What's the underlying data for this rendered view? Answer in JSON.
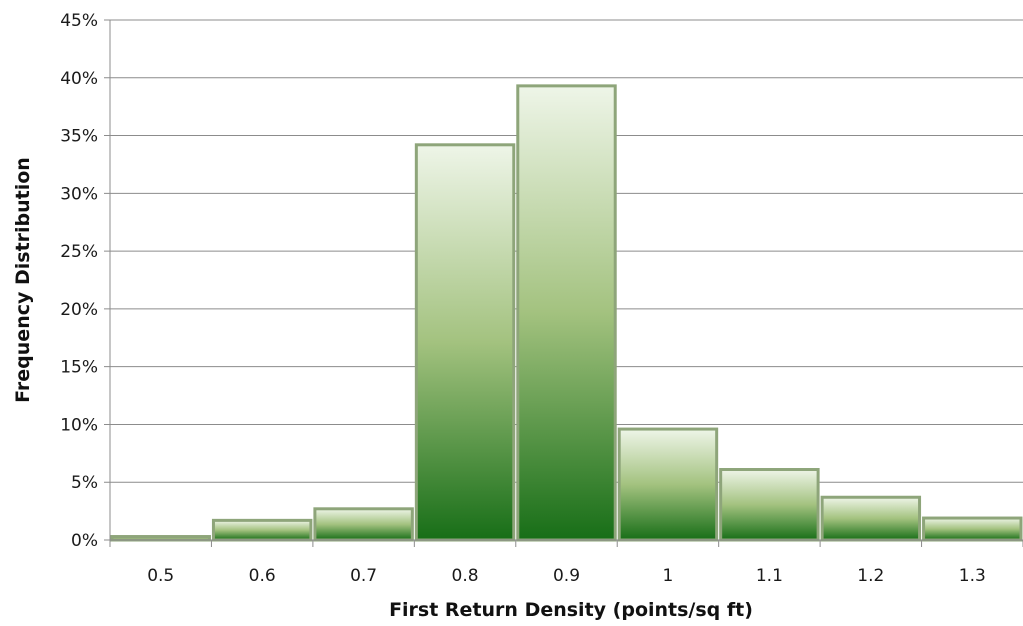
{
  "chart_data": {
    "type": "bar",
    "title": "",
    "xlabel": "First Return Density (points/sq ft)",
    "ylabel": "Frequency Distribution",
    "categories": [
      "0.5",
      "0.6",
      "0.7",
      "0.8",
      "0.9",
      "1",
      "1.1",
      "1.2",
      "1.3"
    ],
    "values": [
      0.3,
      1.7,
      2.7,
      34.2,
      39.3,
      9.6,
      6.1,
      3.7,
      1.9
    ],
    "value_unit": "%",
    "ylim": [
      0,
      45
    ],
    "yticks": [
      "0%",
      "5%",
      "10%",
      "15%",
      "20%",
      "25%",
      "30%",
      "35%",
      "40%",
      "45%"
    ],
    "grid": true,
    "legend": "none"
  },
  "colors": {
    "bar_top": "#eef5e8",
    "bar_mid": "#a3c27f",
    "bar_bottom": "#176e17",
    "bar_border": "#8ea57a",
    "grid": "#8c8c8c"
  }
}
